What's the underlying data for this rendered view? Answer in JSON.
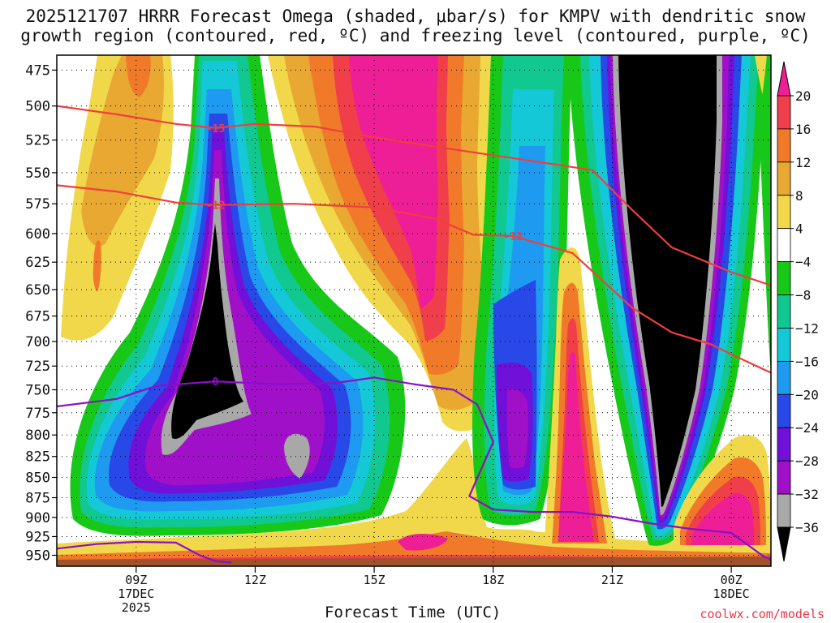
{
  "chart_data": {
    "type": "contour",
    "title_line1": "2025121707 HRRR Forecast Omega (shaded, μbar/s) for KMPV with dendritic snow",
    "title_line2": "growth region (contoured, red, ºC) and freezing level (contoured, purple, ºC)",
    "xlabel": "Forecast Time (UTC)",
    "credit": "coolwx.com/models",
    "x_ticks": [
      {
        "label": "09Z",
        "hour": 9,
        "sub1": "17DEC",
        "sub2": "2025"
      },
      {
        "label": "12Z",
        "hour": 12
      },
      {
        "label": "15Z",
        "hour": 15
      },
      {
        "label": "18Z",
        "hour": 18
      },
      {
        "label": "21Z",
        "hour": 21
      },
      {
        "label": "00Z",
        "hour": 24,
        "sub1": "18DEC"
      }
    ],
    "x_range_hours": [
      7,
      25
    ],
    "y_ticks_hpa": [
      475,
      500,
      525,
      550,
      575,
      600,
      625,
      650,
      675,
      700,
      725,
      750,
      775,
      800,
      825,
      850,
      875,
      900,
      925,
      950
    ],
    "y_range_hpa": [
      465,
      965
    ],
    "colorbar": {
      "labels": [
        "20",
        "16",
        "12",
        "8",
        "4",
        "−4",
        "−8",
        "−12",
        "−16",
        "−20",
        "−24",
        "−28",
        "−32",
        "−36"
      ],
      "levels": [
        {
          "range": "16 to 20",
          "color": "#f03e4a"
        },
        {
          "range": "12 to 16",
          "color": "#f07a2a"
        },
        {
          "range": "8 to 12",
          "color": "#e8a832"
        },
        {
          "range": "4 to 8",
          "color": "#f0d84a"
        },
        {
          "range": "-4 to 4",
          "color": "#ffffff"
        },
        {
          "range": "-8 to -4",
          "color": "#18c818"
        },
        {
          "range": "-12 to -8",
          "color": "#10c890"
        },
        {
          "range": "-16 to -12",
          "color": "#14c8d8"
        },
        {
          "range": "-20 to -16",
          "color": "#1e9af0"
        },
        {
          "range": "-24 to -20",
          "color": "#2848e8"
        },
        {
          "range": "-28 to -24",
          "color": "#7010d8"
        },
        {
          "range": "-32 to -28",
          "color": "#a010c8"
        },
        {
          "range": "-36 to -32",
          "color": "#a8a8a8"
        }
      ],
      "top_extend_color": "#ee1e96",
      "bottom_extend_color": "#000000"
    },
    "contours": [
      {
        "label": "-15",
        "color": "red",
        "points": [
          [
            7,
            500
          ],
          [
            8.5,
            506
          ],
          [
            10,
            513
          ],
          [
            11,
            516
          ],
          [
            12,
            513
          ],
          [
            13.5,
            515
          ],
          [
            15,
            523
          ],
          [
            17,
            532
          ],
          [
            19,
            541
          ],
          [
            20.5,
            548
          ],
          [
            21.5,
            580
          ],
          [
            22.5,
            612
          ],
          [
            24,
            634
          ],
          [
            25,
            646
          ]
        ]
      },
      {
        "label": "-12",
        "color": "red",
        "points": [
          [
            7,
            560
          ],
          [
            8.5,
            565
          ],
          [
            10,
            574
          ],
          [
            11,
            576
          ],
          [
            13,
            575
          ],
          [
            15,
            578
          ],
          [
            16.5,
            587
          ],
          [
            17.5,
            601
          ],
          [
            18.5,
            602
          ],
          [
            20,
            617
          ],
          [
            21.5,
            667
          ],
          [
            22.5,
            691
          ],
          [
            23.5,
            703
          ],
          [
            24,
            713
          ],
          [
            25,
            732
          ]
        ]
      },
      {
        "label": "0",
        "color": "purple",
        "points": [
          [
            7,
            768
          ],
          [
            8.5,
            760
          ],
          [
            9.5,
            746
          ],
          [
            11,
            741
          ],
          [
            12.5,
            744
          ],
          [
            14,
            743
          ],
          [
            15,
            737
          ],
          [
            16,
            744
          ],
          [
            17,
            750
          ],
          [
            17.6,
            766
          ],
          [
            18,
            808
          ],
          [
            17.4,
            873
          ],
          [
            18,
            890
          ],
          [
            19,
            893
          ],
          [
            20,
            893
          ],
          [
            21,
            899
          ],
          [
            22,
            908
          ],
          [
            23,
            915
          ],
          [
            24,
            920
          ],
          [
            24.8,
            951
          ],
          [
            25,
            956
          ]
        ]
      },
      {
        "label": "",
        "color": "purple",
        "points": [
          [
            7,
            941
          ],
          [
            8,
            935
          ],
          [
            9,
            932
          ],
          [
            10,
            933
          ],
          [
            10.6,
            950
          ],
          [
            11,
            958
          ],
          [
            11.4,
            960
          ]
        ]
      }
    ]
  }
}
